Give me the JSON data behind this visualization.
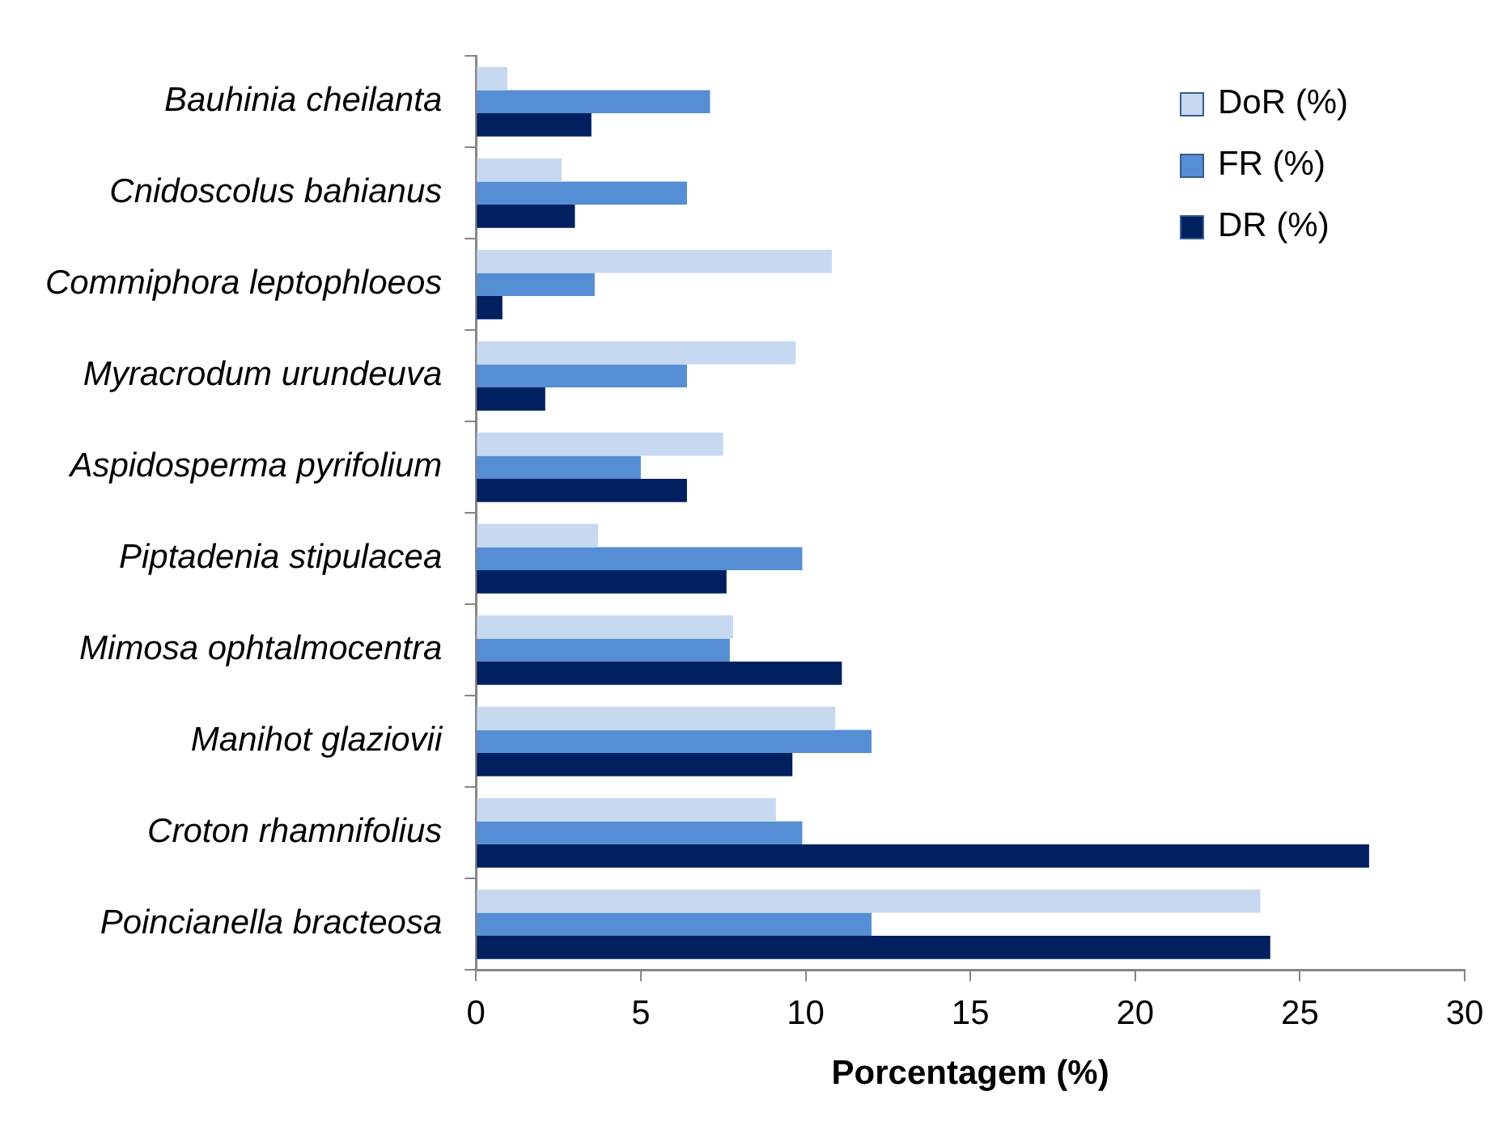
{
  "chart_data": {
    "type": "bar",
    "orientation": "horizontal",
    "xlabel": "Porcentagem (%)",
    "categories": [
      "Bauhinia cheilanta",
      "Cnidoscolus bahianus",
      "Commiphora leptophloeos",
      "Myracrodum urundeuva",
      "Aspidosperma pyrifolium",
      "Piptadenia stipulacea",
      "Mimosa ophtalmocentra",
      "Manihot glaziovii",
      "Croton rhamnifolius",
      "Poincianella bracteosa"
    ],
    "series": [
      {
        "name": "DoR (%)",
        "color": "#c6d9f1",
        "values": [
          0.95,
          2.6,
          10.8,
          9.7,
          7.5,
          3.7,
          7.8,
          10.9,
          9.1,
          23.8
        ]
      },
      {
        "name": "FR (%)",
        "color": "#558ed5",
        "values": [
          7.1,
          6.4,
          3.6,
          6.4,
          5.0,
          9.9,
          7.7,
          12.0,
          9.9,
          12.0
        ]
      },
      {
        "name": "DR (%)",
        "color": "#002060",
        "values": [
          3.5,
          3.0,
          0.8,
          2.1,
          6.4,
          7.6,
          11.1,
          9.6,
          27.1,
          24.1
        ]
      }
    ],
    "xlim": [
      0,
      30
    ],
    "xticks": [
      0,
      5,
      10,
      15,
      20,
      25,
      30
    ],
    "grid": false,
    "legend": "top right"
  }
}
